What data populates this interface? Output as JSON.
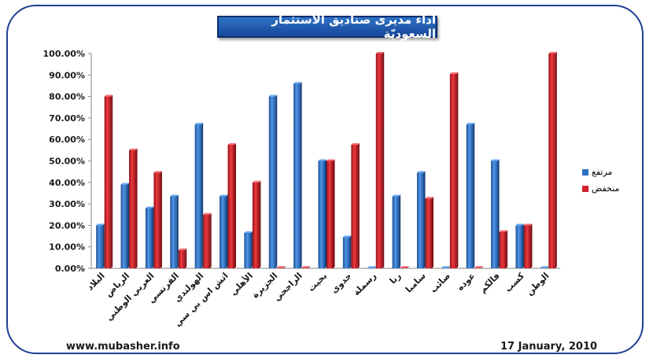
{
  "chart_data": {
    "type": "bar",
    "title": "اداء مديرى صناديق الاستثمار السعوديّة",
    "xlabel": "",
    "ylabel": "",
    "ylim": [
      0,
      100
    ],
    "y_tick_values": [
      0,
      10,
      20,
      30,
      40,
      50,
      60,
      70,
      80,
      90,
      100
    ],
    "y_tick_labels": [
      "0.00%",
      "10.00%",
      "20.00%",
      "30.00%",
      "40.00%",
      "50.00%",
      "60.00%",
      "70.00%",
      "80.00%",
      "90.00%",
      "100.00%"
    ],
    "grid": false,
    "legend_position": "right",
    "categories": [
      "البلاد",
      "الرياض",
      "العربي الوطني",
      "الفرنسي",
      "الهولندي",
      "اتش اس بي سي",
      "الأهلي",
      "الجزيرة",
      "الراجحي",
      "بخيت",
      "جدوى",
      "رسملة",
      "رنا",
      "سامبا",
      "صائب",
      "عوده",
      "فالكم",
      "كسب",
      "الوطن"
    ],
    "series": [
      {
        "name": "مرتفع",
        "color": "#2e6fc0",
        "values": [
          20,
          39,
          28,
          33.5,
          67,
          33.5,
          16.5,
          80,
          86,
          50,
          14.5,
          0,
          33.5,
          44.5,
          0,
          67,
          50,
          20,
          0
        ]
      },
      {
        "name": "منخفض",
        "color": "#d4202a",
        "values": [
          80,
          55,
          44.5,
          8.5,
          25,
          57.5,
          40,
          0,
          0,
          50,
          57.5,
          100,
          0,
          32.5,
          90.5,
          0,
          17,
          20,
          100
        ]
      }
    ]
  },
  "footer": {
    "website": "www.mubasher.info",
    "date": "17 January, 2010"
  }
}
